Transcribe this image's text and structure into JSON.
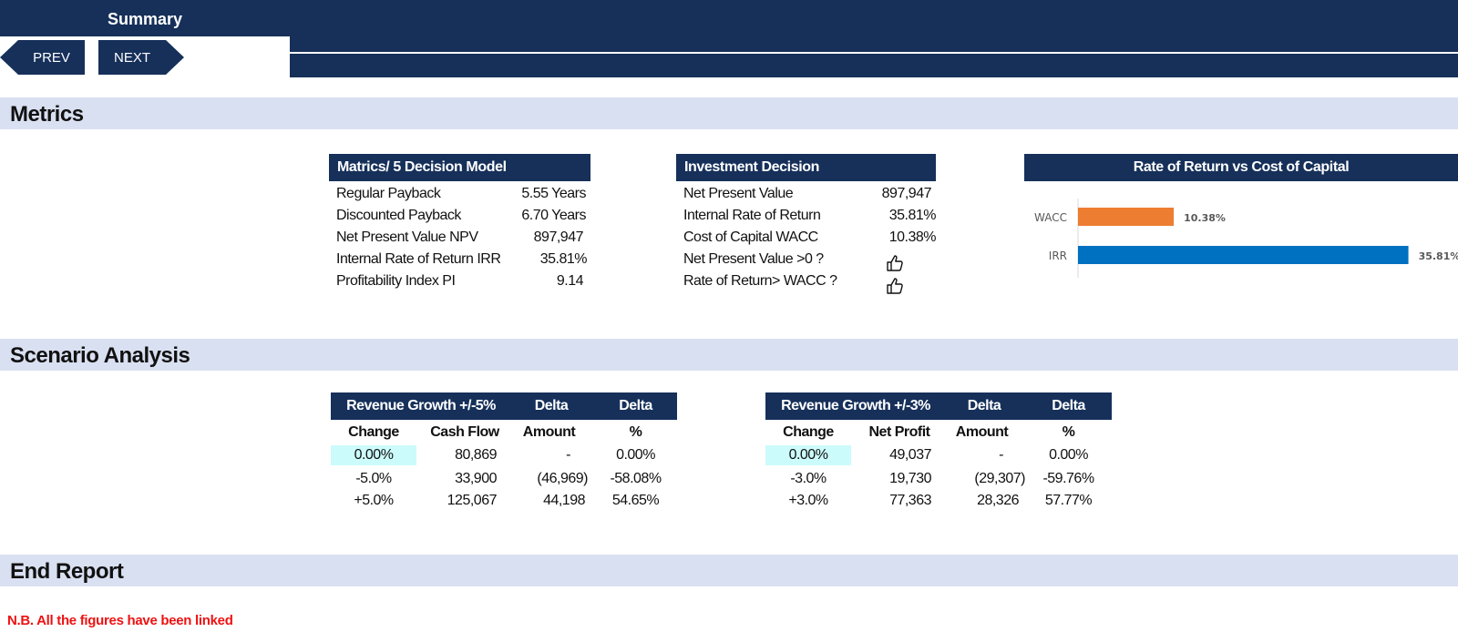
{
  "header": {
    "title": "Summary",
    "prev_label": "PREV",
    "next_label": "NEXT"
  },
  "sections": {
    "metrics": "Metrics",
    "scenario": "Scenario Analysis",
    "end": "End Report"
  },
  "metrics_table": {
    "title": "Matrics/ 5 Decision Model",
    "rows": [
      {
        "label": "Regular Payback",
        "value": "5.55 Years"
      },
      {
        "label": "Discounted Payback",
        "value": "6.70 Years"
      },
      {
        "label": "Net Present Value NPV",
        "value": "897,947"
      },
      {
        "label": "Internal Rate of Return IRR",
        "value": "35.81%"
      },
      {
        "label": "Profitability Index PI",
        "value": "9.14"
      }
    ]
  },
  "investment_table": {
    "title": "Investment Decision",
    "rows": [
      {
        "label": "Net Present Value",
        "value": "897,947"
      },
      {
        "label": "Internal Rate of Return",
        "value": "35.81%"
      },
      {
        "label": "Cost of Capital WACC",
        "value": "10.38%"
      },
      {
        "label": "Net Present Value >0 ?",
        "value": "thumbs-up-icon"
      },
      {
        "label": "Rate of Return> WACC ?",
        "value": "thumbs-up-icon"
      }
    ]
  },
  "chart_data": {
    "type": "bar",
    "orientation": "horizontal",
    "title": "Rate of Return vs Cost of Capital",
    "categories": [
      "WACC",
      "IRR"
    ],
    "values": [
      10.38,
      35.81
    ],
    "value_labels": [
      "10.38%",
      "35.81%"
    ],
    "colors": [
      "#ed7d31",
      "#0070c0"
    ],
    "xlim": [
      0,
      40
    ],
    "grid": false,
    "legend": "none"
  },
  "scenario_revenue": {
    "headers": [
      "Revenue Growth +/-5%",
      "Delta",
      "Delta"
    ],
    "subheaders": [
      "Change",
      "Cash Flow",
      "Amount",
      "%"
    ],
    "rows": [
      [
        "0.00%",
        "80,869",
        "-",
        "0.00%"
      ],
      [
        "-5.0%",
        "33,900",
        "(46,969)",
        "-58.08%"
      ],
      [
        "+5.0%",
        "125,067",
        "44,198",
        "54.65%"
      ]
    ]
  },
  "scenario_profit": {
    "headers": [
      "Revenue Growth +/-3%",
      "Delta",
      "Delta"
    ],
    "subheaders": [
      "Change",
      "Net Profit",
      "Amount",
      "%"
    ],
    "rows": [
      [
        "0.00%",
        "49,037",
        "-",
        "0.00%"
      ],
      [
        "-3.0%",
        "19,730",
        "(29,307)",
        "-59.76%"
      ],
      [
        "+3.0%",
        "77,363",
        "28,326",
        "57.77%"
      ]
    ]
  },
  "note": "N.B. All the figures have been linked",
  "colors": {
    "navy": "#16305a",
    "section_band": "#d9e0f1",
    "highlight": "#ccfbfb",
    "note_red": "#e11111"
  }
}
